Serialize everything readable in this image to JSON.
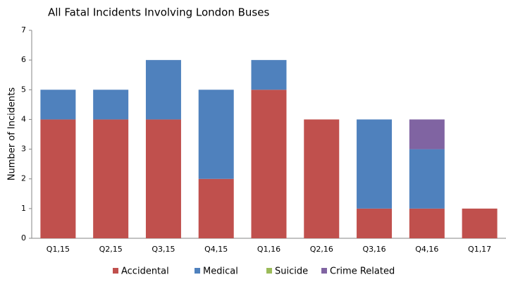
{
  "chart_data": {
    "type": "stacked_bar",
    "title": "All Fatal Incidents Involving London Buses",
    "y_label": "Number of Incidents",
    "categories": [
      "Q1,15",
      "Q2,15",
      "Q3,15",
      "Q4,15",
      "Q1,16",
      "Q2,16",
      "Q3,16",
      "Q4,16",
      "Q1,17"
    ],
    "series": [
      {
        "name": "Accidental",
        "color": "#c0504d",
        "values": [
          4,
          4,
          4,
          2,
          5,
          4,
          1,
          1,
          1
        ]
      },
      {
        "name": "Medical",
        "color": "#4f81bd",
        "values": [
          1,
          1,
          2,
          3,
          1,
          0,
          3,
          2,
          0
        ]
      },
      {
        "name": "Suicide",
        "color": "#9bbb59",
        "values": [
          0,
          0,
          0,
          0,
          0,
          0,
          0,
          0,
          0
        ]
      },
      {
        "name": "Crime Related",
        "color": "#8064a2",
        "values": [
          0,
          0,
          0,
          0,
          0,
          0,
          0,
          1,
          0
        ]
      }
    ],
    "ylim": [
      0,
      7
    ],
    "yticks": [
      0,
      1,
      2,
      3,
      4,
      5,
      6,
      7
    ],
    "grid": false,
    "legend": "bottom"
  }
}
